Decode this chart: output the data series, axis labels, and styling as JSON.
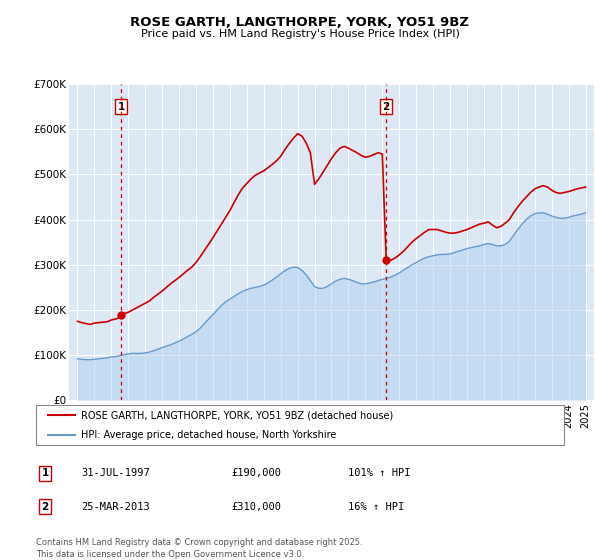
{
  "title": "ROSE GARTH, LANGTHORPE, YORK, YO51 9BZ",
  "subtitle": "Price paid vs. HM Land Registry's House Price Index (HPI)",
  "background_color": "#ffffff",
  "plot_bg_color": "#dce9f5",
  "grid_color": "#ffffff",
  "ylim": [
    0,
    700000
  ],
  "yticks": [
    0,
    100000,
    200000,
    300000,
    400000,
    500000,
    600000,
    700000
  ],
  "ytick_labels": [
    "£0",
    "£100K",
    "£200K",
    "£300K",
    "£400K",
    "£500K",
    "£600K",
    "£700K"
  ],
  "xlim_start": 1994.5,
  "xlim_end": 2025.5,
  "xticks": [
    1995,
    1996,
    1997,
    1998,
    1999,
    2000,
    2001,
    2002,
    2003,
    2004,
    2005,
    2006,
    2007,
    2008,
    2009,
    2010,
    2011,
    2012,
    2013,
    2014,
    2015,
    2016,
    2017,
    2018,
    2019,
    2020,
    2021,
    2022,
    2023,
    2024,
    2025
  ],
  "red_line_color": "#cc0000",
  "blue_line_color": "#6699cc",
  "blue_fill_color": "#aaccee",
  "vline_color": "#cc0000",
  "marker1_x": 1997.58,
  "marker1_y": 190000,
  "marker2_x": 2013.23,
  "marker2_y": 310000,
  "legend_red_label": "ROSE GARTH, LANGTHORPE, YORK, YO51 9BZ (detached house)",
  "legend_blue_label": "HPI: Average price, detached house, North Yorkshire",
  "table_row1": [
    "1",
    "31-JUL-1997",
    "£190,000",
    "101% ↑ HPI"
  ],
  "table_row2": [
    "2",
    "25-MAR-2013",
    "£310,000",
    "16% ↑ HPI"
  ],
  "footnote": "Contains HM Land Registry data © Crown copyright and database right 2025.\nThis data is licensed under the Open Government Licence v3.0.",
  "red_prices": [
    [
      1995.0,
      175000
    ],
    [
      1995.25,
      172000
    ],
    [
      1995.5,
      170000
    ],
    [
      1995.75,
      168000
    ],
    [
      1996.0,
      171000
    ],
    [
      1996.25,
      172000
    ],
    [
      1996.5,
      173000
    ],
    [
      1996.75,
      174000
    ],
    [
      1997.0,
      178000
    ],
    [
      1997.25,
      180000
    ],
    [
      1997.5,
      183000
    ],
    [
      1997.58,
      190000
    ],
    [
      1997.75,
      192000
    ],
    [
      1998.0,
      195000
    ],
    [
      1998.25,
      200000
    ],
    [
      1998.5,
      205000
    ],
    [
      1998.75,
      210000
    ],
    [
      1999.0,
      215000
    ],
    [
      1999.25,
      220000
    ],
    [
      1999.5,
      228000
    ],
    [
      1999.75,
      235000
    ],
    [
      2000.0,
      242000
    ],
    [
      2000.25,
      250000
    ],
    [
      2000.5,
      258000
    ],
    [
      2000.75,
      265000
    ],
    [
      2001.0,
      272000
    ],
    [
      2001.25,
      280000
    ],
    [
      2001.5,
      288000
    ],
    [
      2001.75,
      295000
    ],
    [
      2002.0,
      305000
    ],
    [
      2002.25,
      318000
    ],
    [
      2002.5,
      332000
    ],
    [
      2002.75,
      346000
    ],
    [
      2003.0,
      360000
    ],
    [
      2003.25,
      375000
    ],
    [
      2003.5,
      390000
    ],
    [
      2003.75,
      405000
    ],
    [
      2004.0,
      420000
    ],
    [
      2004.25,
      438000
    ],
    [
      2004.5,
      455000
    ],
    [
      2004.75,
      470000
    ],
    [
      2005.0,
      480000
    ],
    [
      2005.25,
      490000
    ],
    [
      2005.5,
      498000
    ],
    [
      2005.75,
      503000
    ],
    [
      2006.0,
      508000
    ],
    [
      2006.25,
      515000
    ],
    [
      2006.5,
      522000
    ],
    [
      2006.75,
      530000
    ],
    [
      2007.0,
      540000
    ],
    [
      2007.25,
      555000
    ],
    [
      2007.5,
      568000
    ],
    [
      2007.75,
      580000
    ],
    [
      2008.0,
      590000
    ],
    [
      2008.25,
      585000
    ],
    [
      2008.5,
      570000
    ],
    [
      2008.75,
      548000
    ],
    [
      2009.0,
      478000
    ],
    [
      2009.25,
      490000
    ],
    [
      2009.5,
      505000
    ],
    [
      2009.75,
      520000
    ],
    [
      2010.0,
      535000
    ],
    [
      2010.25,
      548000
    ],
    [
      2010.5,
      558000
    ],
    [
      2010.75,
      562000
    ],
    [
      2011.0,
      558000
    ],
    [
      2011.25,
      553000
    ],
    [
      2011.5,
      548000
    ],
    [
      2011.75,
      542000
    ],
    [
      2012.0,
      538000
    ],
    [
      2012.25,
      540000
    ],
    [
      2012.5,
      544000
    ],
    [
      2012.75,
      548000
    ],
    [
      2013.0,
      545000
    ],
    [
      2013.23,
      310000
    ],
    [
      2013.5,
      310000
    ],
    [
      2013.75,
      315000
    ],
    [
      2014.0,
      322000
    ],
    [
      2014.25,
      330000
    ],
    [
      2014.5,
      340000
    ],
    [
      2014.75,
      350000
    ],
    [
      2015.0,
      358000
    ],
    [
      2015.25,
      365000
    ],
    [
      2015.5,
      372000
    ],
    [
      2015.75,
      378000
    ],
    [
      2016.0,
      378000
    ],
    [
      2016.25,
      378000
    ],
    [
      2016.5,
      375000
    ],
    [
      2016.75,
      372000
    ],
    [
      2017.0,
      370000
    ],
    [
      2017.25,
      370000
    ],
    [
      2017.5,
      372000
    ],
    [
      2017.75,
      375000
    ],
    [
      2018.0,
      378000
    ],
    [
      2018.25,
      382000
    ],
    [
      2018.5,
      386000
    ],
    [
      2018.75,
      390000
    ],
    [
      2019.0,
      392000
    ],
    [
      2019.25,
      395000
    ],
    [
      2019.5,
      388000
    ],
    [
      2019.75,
      382000
    ],
    [
      2020.0,
      385000
    ],
    [
      2020.25,
      392000
    ],
    [
      2020.5,
      400000
    ],
    [
      2020.75,
      415000
    ],
    [
      2021.0,
      428000
    ],
    [
      2021.25,
      440000
    ],
    [
      2021.5,
      450000
    ],
    [
      2021.75,
      460000
    ],
    [
      2022.0,
      468000
    ],
    [
      2022.25,
      472000
    ],
    [
      2022.5,
      475000
    ],
    [
      2022.75,
      472000
    ],
    [
      2023.0,
      465000
    ],
    [
      2023.25,
      460000
    ],
    [
      2023.5,
      458000
    ],
    [
      2023.75,
      460000
    ],
    [
      2024.0,
      462000
    ],
    [
      2024.25,
      465000
    ],
    [
      2024.5,
      468000
    ],
    [
      2024.75,
      470000
    ],
    [
      2025.0,
      472000
    ]
  ],
  "blue_prices": [
    [
      1995.0,
      92000
    ],
    [
      1995.25,
      91000
    ],
    [
      1995.5,
      90000
    ],
    [
      1995.75,
      90000
    ],
    [
      1996.0,
      91000
    ],
    [
      1996.25,
      92000
    ],
    [
      1996.5,
      93000
    ],
    [
      1996.75,
      94000
    ],
    [
      1997.0,
      96000
    ],
    [
      1997.25,
      97000
    ],
    [
      1997.5,
      99000
    ],
    [
      1997.75,
      101000
    ],
    [
      1998.0,
      103000
    ],
    [
      1998.25,
      104000
    ],
    [
      1998.5,
      104000
    ],
    [
      1998.75,
      104000
    ],
    [
      1999.0,
      105000
    ],
    [
      1999.25,
      107000
    ],
    [
      1999.5,
      110000
    ],
    [
      1999.75,
      113000
    ],
    [
      2000.0,
      117000
    ],
    [
      2000.25,
      120000
    ],
    [
      2000.5,
      123000
    ],
    [
      2000.75,
      127000
    ],
    [
      2001.0,
      131000
    ],
    [
      2001.25,
      136000
    ],
    [
      2001.5,
      141000
    ],
    [
      2001.75,
      146000
    ],
    [
      2002.0,
      152000
    ],
    [
      2002.25,
      160000
    ],
    [
      2002.5,
      170000
    ],
    [
      2002.75,
      180000
    ],
    [
      2003.0,
      190000
    ],
    [
      2003.25,
      200000
    ],
    [
      2003.5,
      210000
    ],
    [
      2003.75,
      218000
    ],
    [
      2004.0,
      224000
    ],
    [
      2004.25,
      230000
    ],
    [
      2004.5,
      236000
    ],
    [
      2004.75,
      241000
    ],
    [
      2005.0,
      245000
    ],
    [
      2005.25,
      248000
    ],
    [
      2005.5,
      250000
    ],
    [
      2005.75,
      252000
    ],
    [
      2006.0,
      255000
    ],
    [
      2006.25,
      260000
    ],
    [
      2006.5,
      266000
    ],
    [
      2006.75,
      273000
    ],
    [
      2007.0,
      280000
    ],
    [
      2007.25,
      287000
    ],
    [
      2007.5,
      292000
    ],
    [
      2007.75,
      295000
    ],
    [
      2008.0,
      294000
    ],
    [
      2008.25,
      288000
    ],
    [
      2008.5,
      278000
    ],
    [
      2008.75,
      265000
    ],
    [
      2009.0,
      252000
    ],
    [
      2009.25,
      248000
    ],
    [
      2009.5,
      248000
    ],
    [
      2009.75,
      252000
    ],
    [
      2010.0,
      258000
    ],
    [
      2010.25,
      264000
    ],
    [
      2010.5,
      268000
    ],
    [
      2010.75,
      270000
    ],
    [
      2011.0,
      268000
    ],
    [
      2011.25,
      265000
    ],
    [
      2011.5,
      261000
    ],
    [
      2011.75,
      258000
    ],
    [
      2012.0,
      258000
    ],
    [
      2012.25,
      260000
    ],
    [
      2012.5,
      262000
    ],
    [
      2012.75,
      265000
    ],
    [
      2013.0,
      268000
    ],
    [
      2013.25,
      270000
    ],
    [
      2013.5,
      273000
    ],
    [
      2013.75,
      277000
    ],
    [
      2014.0,
      282000
    ],
    [
      2014.25,
      288000
    ],
    [
      2014.5,
      294000
    ],
    [
      2014.75,
      300000
    ],
    [
      2015.0,
      305000
    ],
    [
      2015.25,
      310000
    ],
    [
      2015.5,
      315000
    ],
    [
      2015.75,
      318000
    ],
    [
      2016.0,
      320000
    ],
    [
      2016.25,
      322000
    ],
    [
      2016.5,
      323000
    ],
    [
      2016.75,
      323000
    ],
    [
      2017.0,
      324000
    ],
    [
      2017.25,
      327000
    ],
    [
      2017.5,
      330000
    ],
    [
      2017.75,
      333000
    ],
    [
      2018.0,
      336000
    ],
    [
      2018.25,
      338000
    ],
    [
      2018.5,
      340000
    ],
    [
      2018.75,
      342000
    ],
    [
      2019.0,
      345000
    ],
    [
      2019.25,
      347000
    ],
    [
      2019.5,
      345000
    ],
    [
      2019.75,
      342000
    ],
    [
      2020.0,
      342000
    ],
    [
      2020.25,
      345000
    ],
    [
      2020.5,
      352000
    ],
    [
      2020.75,
      365000
    ],
    [
      2021.0,
      378000
    ],
    [
      2021.25,
      390000
    ],
    [
      2021.5,
      400000
    ],
    [
      2021.75,
      408000
    ],
    [
      2022.0,
      413000
    ],
    [
      2022.25,
      415000
    ],
    [
      2022.5,
      415000
    ],
    [
      2022.75,
      412000
    ],
    [
      2023.0,
      408000
    ],
    [
      2023.25,
      405000
    ],
    [
      2023.5,
      403000
    ],
    [
      2023.75,
      403000
    ],
    [
      2024.0,
      405000
    ],
    [
      2024.25,
      408000
    ],
    [
      2024.5,
      410000
    ],
    [
      2024.75,
      412000
    ],
    [
      2025.0,
      415000
    ]
  ]
}
